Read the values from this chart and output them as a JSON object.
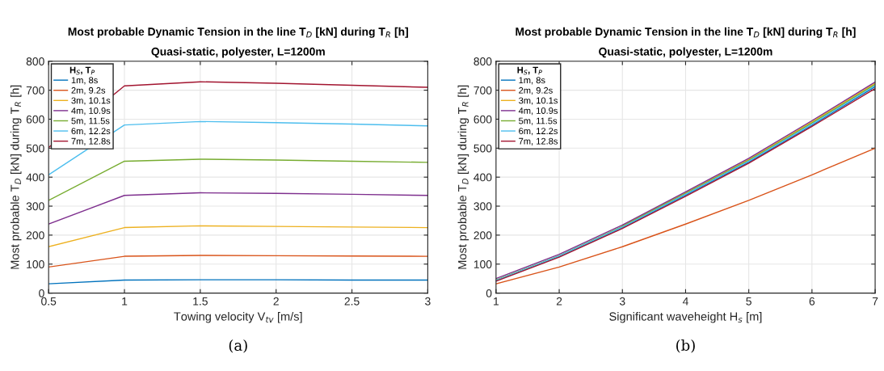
{
  "chart_data": [
    {
      "type": "line",
      "title": "Most probable Dynamic Tension in the line T$_{D}$ [kN] during T$_{R}$ [h]",
      "subtitle": "Quasi-static, polyester, L=1200m",
      "xlabel": "Towing velocity V$_{tv}$ [m/s]",
      "ylabel": "Most probable T$_{D}$ [kN] during T$_{R}$ [h]",
      "legend_title": "H$_{S}$, T$_{P}$",
      "annotations": [
        "(a)"
      ],
      "x": [
        0.5,
        1,
        1.5,
        2,
        2.5,
        3
      ],
      "xlim": [
        0.5,
        3
      ],
      "xticks": [
        0.5,
        1,
        1.5,
        2,
        2.5,
        3
      ],
      "ylim": [
        0,
        800
      ],
      "yticks": [
        0,
        100,
        200,
        300,
        400,
        500,
        600,
        700,
        800
      ],
      "grid": true,
      "legend": "top left",
      "marker": "none",
      "line_style": "solid",
      "series": [
        {
          "name": "1m, 8s",
          "color": "#0072bd",
          "values": [
            32,
            45,
            46,
            46,
            45,
            45
          ]
        },
        {
          "name": "2m, 9.2s",
          "color": "#d95319",
          "values": [
            90,
            127,
            130,
            129,
            128,
            127
          ]
        },
        {
          "name": "3m, 10.1s",
          "color": "#edb120",
          "values": [
            160,
            226,
            232,
            230,
            228,
            226
          ]
        },
        {
          "name": "4m, 10.9s",
          "color": "#7e2f8e",
          "values": [
            238,
            337,
            346,
            344,
            341,
            337
          ]
        },
        {
          "name": "5m, 11.5s",
          "color": "#77ac30",
          "values": [
            320,
            455,
            462,
            459,
            455,
            451
          ]
        },
        {
          "name": "6m, 12.2s",
          "color": "#4dbeee",
          "values": [
            408,
            580,
            592,
            588,
            583,
            577
          ]
        },
        {
          "name": "7m, 12.8s",
          "color": "#a2142f",
          "values": [
            502,
            715,
            729,
            724,
            717,
            710
          ]
        }
      ]
    },
    {
      "type": "line",
      "title": "Most probable Dynamic Tension in the line T$_{D}$ [kN] during T$_{R}$ [h]",
      "subtitle": "Quasi-static, polyester, L=1200m",
      "xlabel": "Significant waveheight H$_{s}$ [m]",
      "ylabel": "Most probable T$_{D}$ [kN] during T$_{R}$ [h]",
      "legend_title": "H$_{S}$, T$_{P}$",
      "annotations": [
        "(b)"
      ],
      "x": [
        1,
        2,
        3,
        4,
        5,
        6,
        7
      ],
      "xlim": [
        1,
        7
      ],
      "xticks": [
        1,
        2,
        3,
        4,
        5,
        6,
        7
      ],
      "ylim": [
        0,
        800
      ],
      "yticks": [
        0,
        100,
        200,
        300,
        400,
        500,
        600,
        700,
        800
      ],
      "grid": true,
      "legend": "top left",
      "marker": "none",
      "line_style": "solid",
      "series": [
        {
          "name": "1m, 8s",
          "color": "#0072bd",
          "values": [
            43,
            127,
            226,
            338,
            452,
            579,
            712
          ]
        },
        {
          "name": "2m, 9.2s",
          "color": "#d95319",
          "values": [
            32,
            90,
            160,
            238,
            320,
            408,
            500
          ]
        },
        {
          "name": "3m, 10.1s",
          "color": "#edb120",
          "values": [
            null,
            null,
            232,
            346,
            461,
            591,
            724
          ]
        },
        {
          "name": "4m, 10.9s",
          "color": "#7e2f8e",
          "values": [
            50,
            134,
            235,
            349,
            465,
            595,
            728
          ]
        },
        {
          "name": "5m, 11.5s",
          "color": "#77ac30",
          "values": [
            45,
            129,
            230,
            344,
            458,
            587,
            720
          ]
        },
        {
          "name": "6m, 12.2s",
          "color": "#4dbeee",
          "values": [
            44,
            128,
            228,
            341,
            455,
            583,
            716
          ]
        },
        {
          "name": "7m, 12.8s",
          "color": "#a2142f",
          "values": [
            41,
            124,
            223,
            334,
            448,
            575,
            706
          ]
        }
      ]
    }
  ]
}
